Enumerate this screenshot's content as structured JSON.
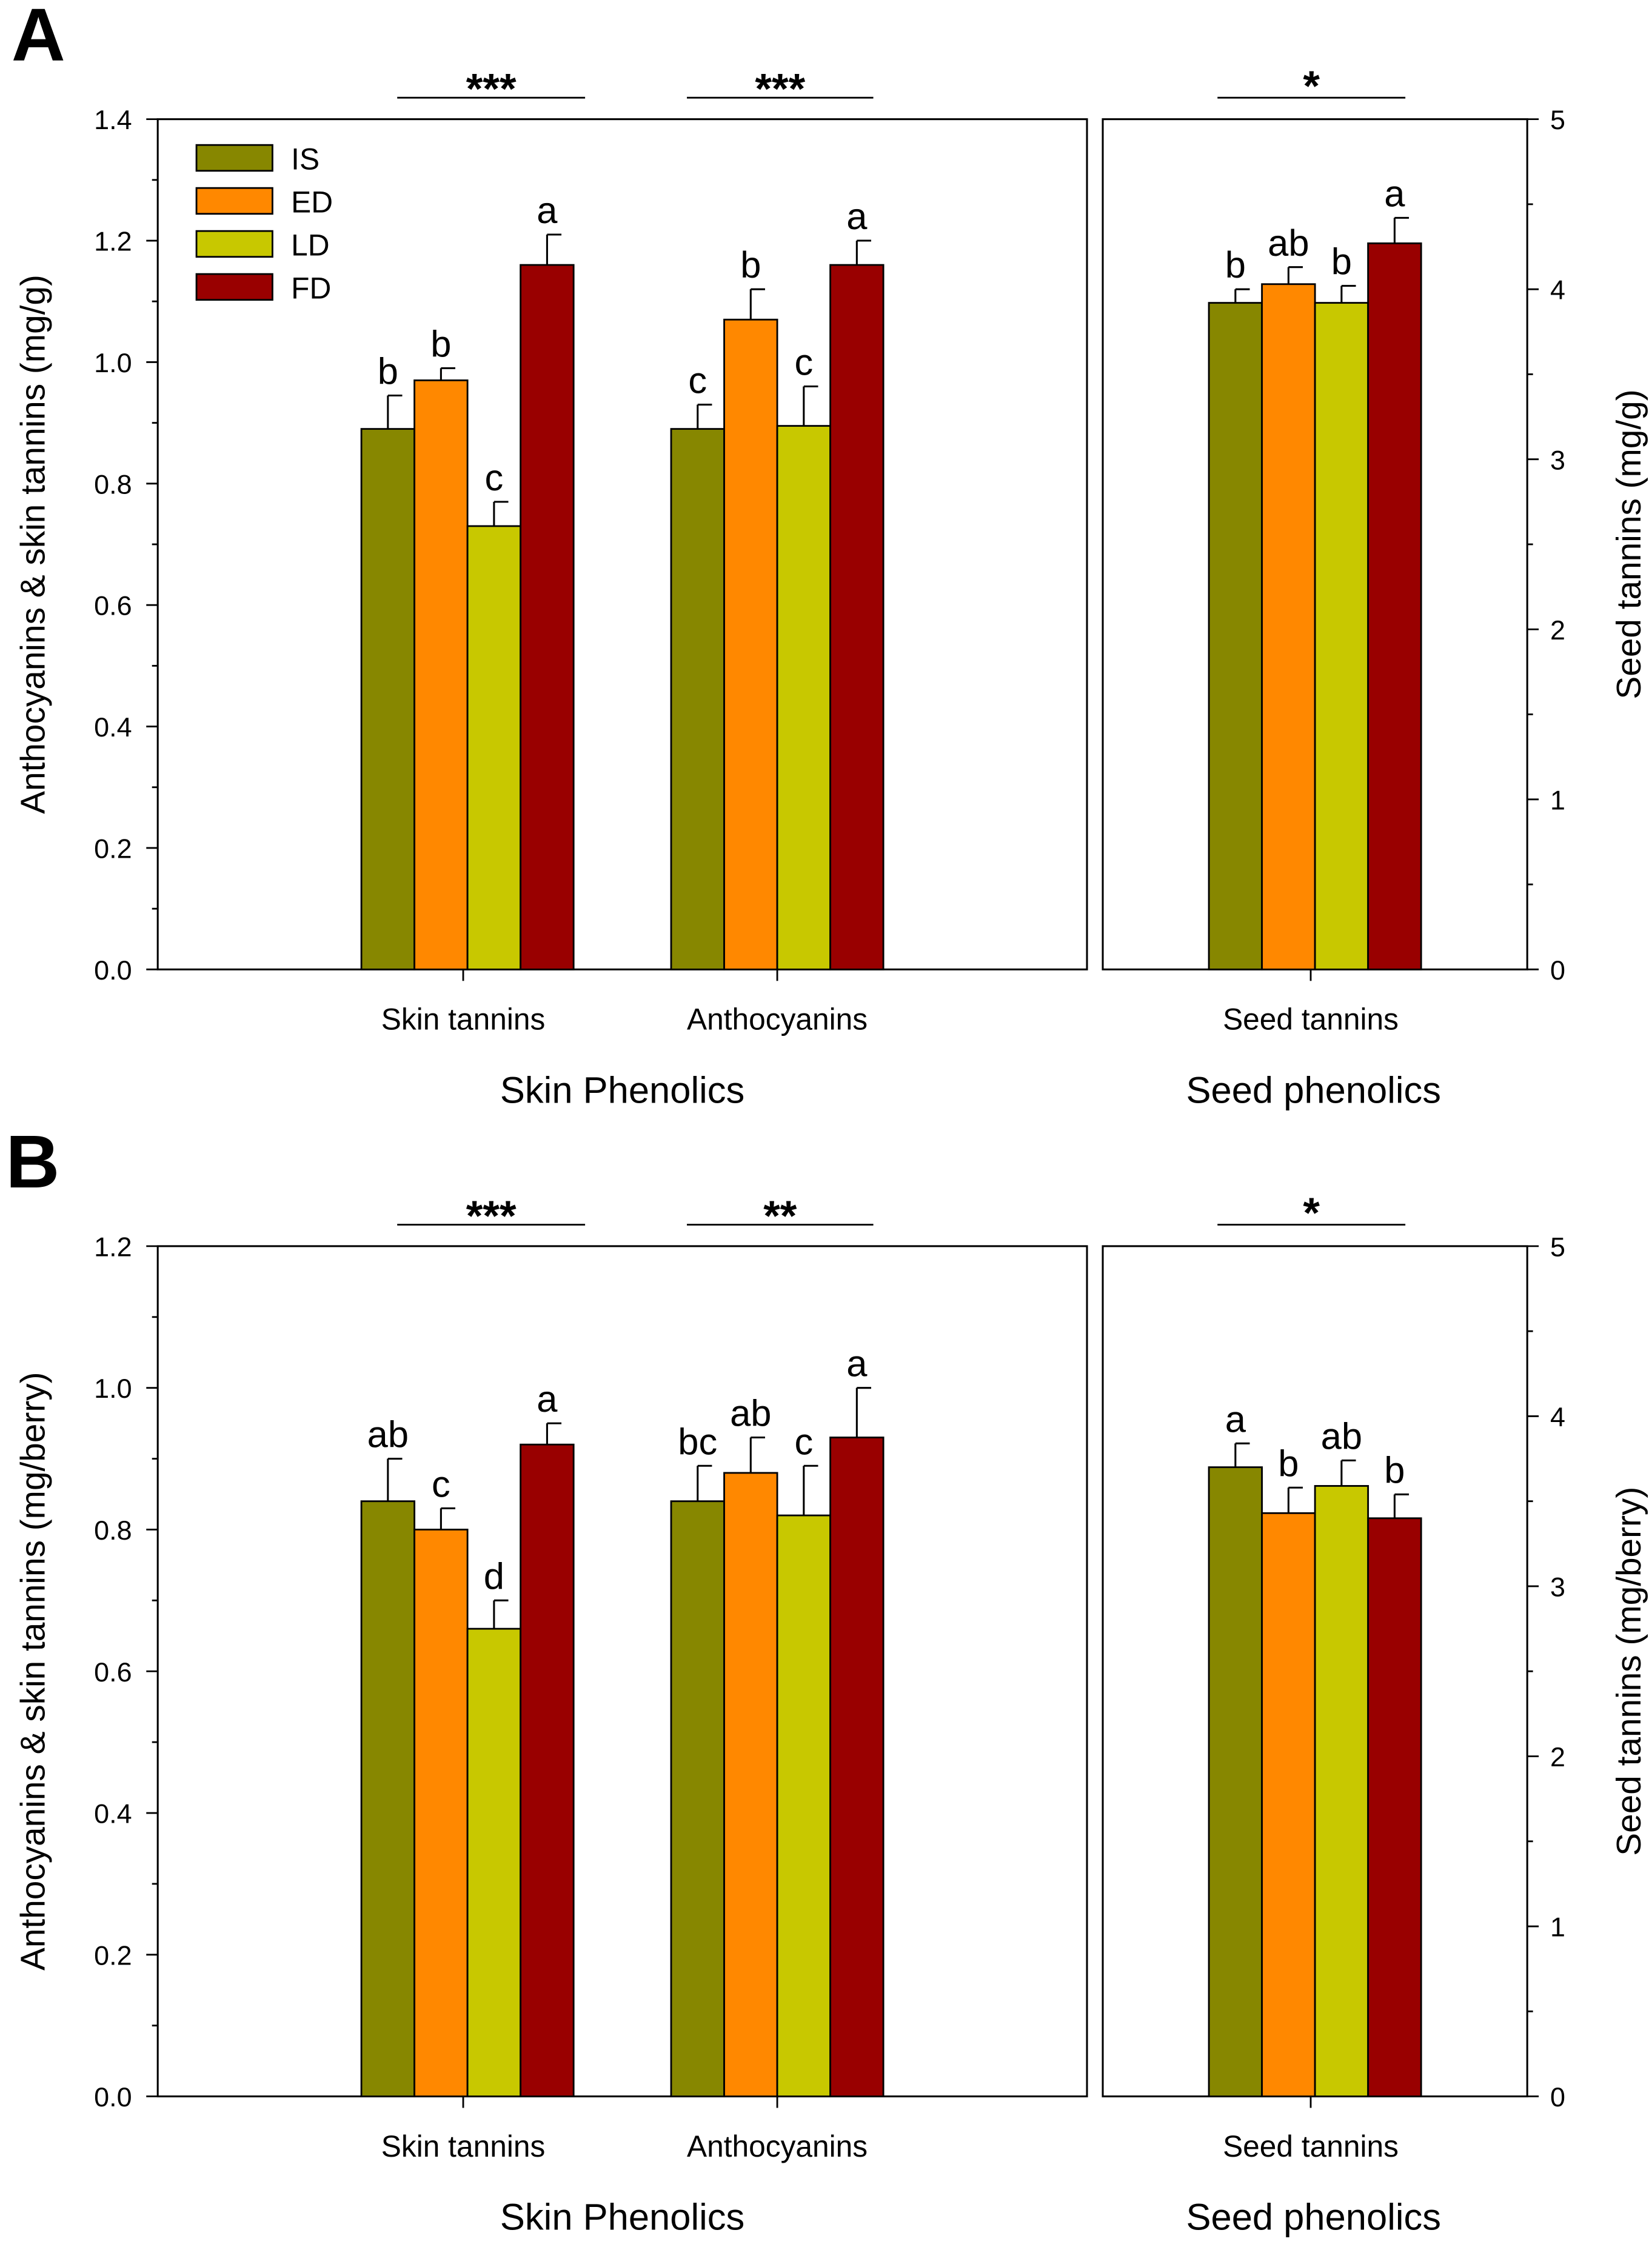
{
  "series_names": [
    "IS",
    "ED",
    "LD",
    "FD"
  ],
  "colors": {
    "IS": "#878700",
    "ED": "#FF8800",
    "LD": "#C8C800",
    "FD": "#990000"
  },
  "chart_data": [
    {
      "panel": "A",
      "type": "bar",
      "ylabel_left": "Anthocyanins & skin tannins (mg/g)",
      "ylabel_right": "Seed tannins (mg/g)",
      "ylim_left": [
        0,
        1.4
      ],
      "yticks_left": [
        "0.0",
        "0.2",
        "0.4",
        "0.6",
        "0.8",
        "1.0",
        "1.2",
        "1.4"
      ],
      "ylim_right": [
        0,
        5
      ],
      "yticks_right": [
        "0",
        "1",
        "2",
        "3",
        "4",
        "5"
      ],
      "legend": "top-left",
      "group_labels": [
        "Skin Phenolics",
        "Seed phenolics"
      ],
      "categories": [
        {
          "name": "Skin tannins",
          "axis": "left",
          "significance": "***",
          "values": [
            0.89,
            0.97,
            0.73,
            1.16
          ],
          "errors": [
            0.055,
            0.02,
            0.04,
            0.05
          ],
          "letters": [
            "b",
            "b",
            "c",
            "a"
          ]
        },
        {
          "name": "Anthocyanins",
          "axis": "left",
          "significance": "***",
          "values": [
            0.89,
            1.07,
            0.895,
            1.16
          ],
          "errors": [
            0.04,
            0.05,
            0.065,
            0.04
          ],
          "letters": [
            "c",
            "b",
            "c",
            "a"
          ]
        },
        {
          "name": "Seed tannins",
          "axis": "right",
          "significance": "*",
          "values": [
            3.92,
            4.03,
            3.92,
            4.27
          ],
          "errors": [
            0.08,
            0.1,
            0.1,
            0.15
          ],
          "letters": [
            "b",
            "ab",
            "b",
            "a"
          ]
        }
      ]
    },
    {
      "panel": "B",
      "type": "bar",
      "ylabel_left": "Anthocyanins & skin tannins (mg/berry)",
      "ylabel_right": "Seed tannins (mg/berry)",
      "ylim_left": [
        0,
        1.2
      ],
      "yticks_left": [
        "0.0",
        "0.2",
        "0.4",
        "0.6",
        "0.8",
        "1.0",
        "1.2"
      ],
      "ylim_right": [
        0,
        5
      ],
      "yticks_right": [
        "0",
        "1",
        "2",
        "3",
        "4",
        "5"
      ],
      "group_labels": [
        "Skin Phenolics",
        "Seed phenolics"
      ],
      "categories": [
        {
          "name": "Skin tannins",
          "axis": "left",
          "significance": "***",
          "values": [
            0.84,
            0.8,
            0.66,
            0.92
          ],
          "errors": [
            0.06,
            0.03,
            0.04,
            0.03
          ],
          "letters": [
            "ab",
            "c",
            "d",
            "a"
          ]
        },
        {
          "name": "Anthocyanins",
          "axis": "left",
          "significance": "**",
          "values": [
            0.84,
            0.88,
            0.82,
            0.93
          ],
          "errors": [
            0.05,
            0.05,
            0.07,
            0.07
          ],
          "letters": [
            "bc",
            "ab",
            "c",
            "a"
          ]
        },
        {
          "name": "Seed tannins",
          "axis": "right",
          "significance": "*",
          "values": [
            3.7,
            3.43,
            3.59,
            3.4
          ],
          "errors": [
            0.14,
            0.15,
            0.15,
            0.14
          ],
          "letters": [
            "a",
            "b",
            "ab",
            "b"
          ]
        }
      ]
    }
  ]
}
